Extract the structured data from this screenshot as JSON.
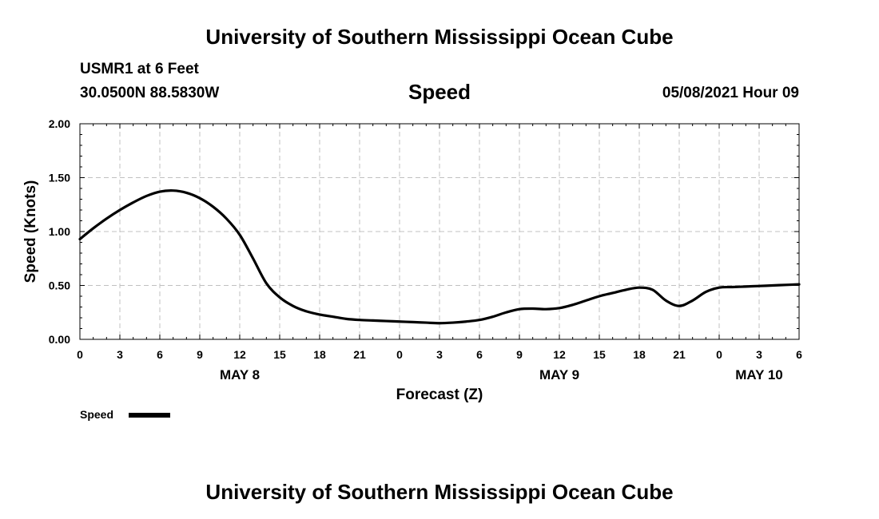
{
  "header": {
    "top_title": "University of Southern Mississippi Ocean Cube",
    "station": "USMR1 at 6 Feet",
    "coords": "30.0500N  88.5830W",
    "datetime": "05/08/2021 Hour 09",
    "bottom_title": "University of Southern Mississippi Ocean Cube"
  },
  "colors": {
    "line": "#000000",
    "grid": "#c0c0c0",
    "background": "#ffffff"
  },
  "chart_data": {
    "type": "line",
    "title": "Speed",
    "xlabel": "Forecast (Z)",
    "ylabel": "Speed (Knots)",
    "ylim": [
      0,
      2
    ],
    "xlim": [
      0,
      54
    ],
    "grid": true,
    "y_ticks": [
      {
        "value": 0.0,
        "label": "0.00"
      },
      {
        "value": 0.5,
        "label": "0.50"
      },
      {
        "value": 1.0,
        "label": "1.00"
      },
      {
        "value": 1.5,
        "label": "1.50"
      },
      {
        "value": 2.0,
        "label": "2.00"
      }
    ],
    "x_ticks": [
      {
        "value": 0,
        "label": "0"
      },
      {
        "value": 3,
        "label": "3"
      },
      {
        "value": 6,
        "label": "6"
      },
      {
        "value": 9,
        "label": "9"
      },
      {
        "value": 12,
        "label": "12"
      },
      {
        "value": 15,
        "label": "15"
      },
      {
        "value": 18,
        "label": "18"
      },
      {
        "value": 21,
        "label": "21"
      },
      {
        "value": 24,
        "label": "0"
      },
      {
        "value": 27,
        "label": "3"
      },
      {
        "value": 30,
        "label": "6"
      },
      {
        "value": 33,
        "label": "9"
      },
      {
        "value": 36,
        "label": "12"
      },
      {
        "value": 39,
        "label": "15"
      },
      {
        "value": 42,
        "label": "18"
      },
      {
        "value": 45,
        "label": "21"
      },
      {
        "value": 48,
        "label": "0"
      },
      {
        "value": 51,
        "label": "3"
      },
      {
        "value": 54,
        "label": "6"
      }
    ],
    "date_labels": [
      {
        "value": 12,
        "label": "MAY 8"
      },
      {
        "value": 36,
        "label": "MAY 9"
      },
      {
        "value": 51,
        "label": "MAY 10"
      }
    ],
    "series": [
      {
        "name": "Speed",
        "x": [
          0,
          1,
          2,
          3,
          4,
          5,
          6,
          7,
          8,
          9,
          10,
          11,
          12,
          13,
          14,
          15,
          16,
          17,
          18,
          19,
          20,
          21,
          22,
          23,
          24,
          25,
          26,
          27,
          28,
          29,
          30,
          31,
          32,
          33,
          34,
          35,
          36,
          37,
          38,
          39,
          40,
          41,
          42,
          43,
          44,
          45,
          46,
          47,
          48,
          49,
          50,
          51,
          52,
          53,
          54
        ],
        "values": [
          0.93,
          1.03,
          1.12,
          1.2,
          1.27,
          1.33,
          1.37,
          1.38,
          1.36,
          1.31,
          1.23,
          1.12,
          0.97,
          0.75,
          0.52,
          0.39,
          0.31,
          0.26,
          0.23,
          0.21,
          0.19,
          0.18,
          0.175,
          0.17,
          0.165,
          0.16,
          0.155,
          0.15,
          0.155,
          0.165,
          0.18,
          0.21,
          0.25,
          0.28,
          0.285,
          0.28,
          0.29,
          0.32,
          0.36,
          0.4,
          0.43,
          0.46,
          0.48,
          0.46,
          0.36,
          0.31,
          0.36,
          0.44,
          0.48,
          0.485,
          0.49,
          0.495,
          0.5,
          0.505,
          0.51
        ]
      }
    ],
    "legend": {
      "label": "Speed",
      "placement": "bottom-left"
    }
  }
}
